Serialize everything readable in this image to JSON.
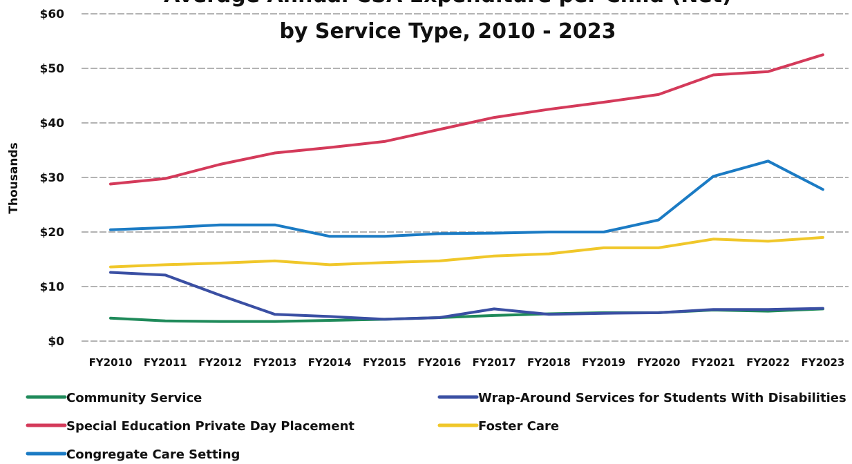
{
  "chart_data": {
    "type": "line",
    "title_line1": "Average Annual CSA Expenditure per Child (Net)",
    "title_line2": "by Service Type, 2010 - 2023",
    "ylabel": "Thousands",
    "xlabel": "",
    "ylim": [
      0,
      60
    ],
    "y_ticks": [
      {
        "value": 0,
        "label": "$0"
      },
      {
        "value": 10,
        "label": "$10"
      },
      {
        "value": 20,
        "label": "$20"
      },
      {
        "value": 30,
        "label": "$30"
      },
      {
        "value": 40,
        "label": "$40"
      },
      {
        "value": 50,
        "label": "$50"
      },
      {
        "value": 60,
        "label": "$60"
      }
    ],
    "grid": true,
    "legend_position": "bottom",
    "categories": [
      "FY2010",
      "FY2011",
      "FY2012",
      "FY2013",
      "FY2014",
      "FY2015",
      "FY2016",
      "FY2017",
      "FY2018",
      "FY2019",
      "FY2020",
      "FY2021",
      "FY2022",
      "FY2023"
    ],
    "series": [
      {
        "name": "Community Service",
        "color": "#1f8a5a",
        "values": [
          4.2,
          3.7,
          3.6,
          3.6,
          3.8,
          4.0,
          4.3,
          4.7,
          5.0,
          5.2,
          5.2,
          5.7,
          5.5,
          5.9
        ]
      },
      {
        "name": "Wrap-Around Services for Students With Disabilities",
        "color": "#3a4fa3",
        "values": [
          12.6,
          12.1,
          8.4,
          4.9,
          4.5,
          4.0,
          4.3,
          5.9,
          4.9,
          5.1,
          5.2,
          5.8,
          5.8,
          6.0
        ]
      },
      {
        "name": "Special Education Private Day Placement",
        "color": "#d43a5a",
        "values": [
          28.8,
          29.8,
          32.4,
          34.5,
          35.5,
          36.6,
          38.8,
          41.0,
          42.5,
          43.8,
          45.2,
          48.8,
          49.4,
          52.5
        ]
      },
      {
        "name": "Foster Care",
        "color": "#f0c72a",
        "values": [
          13.6,
          14.0,
          14.3,
          14.7,
          14.0,
          14.4,
          14.7,
          15.6,
          16.0,
          17.1,
          17.1,
          18.7,
          18.3,
          19.0
        ]
      },
      {
        "name": "Congregate Care Setting",
        "color": "#1b7bc4",
        "values": [
          20.4,
          20.8,
          21.3,
          21.3,
          19.2,
          19.2,
          19.7,
          19.8,
          20.0,
          20.0,
          22.2,
          30.2,
          33.0,
          27.8
        ]
      }
    ]
  }
}
